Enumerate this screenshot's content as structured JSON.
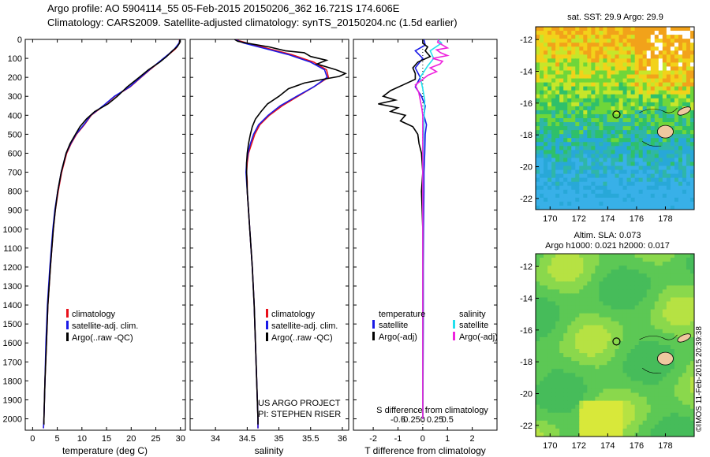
{
  "header": {
    "line1": "Argo profile: AO 5904114_55 05-Feb-2015 20150206_362 16.721S 174.606E",
    "line2": "Climatology: CARS2009. Satellite-adjusted climatology: synTS_20150204.nc (1.5d earlier)"
  },
  "timestamp": "©IMOS 11-Feb-2015 20:39:38",
  "depth_ticks": [
    0,
    100,
    200,
    300,
    400,
    500,
    600,
    700,
    800,
    900,
    1000,
    1100,
    1200,
    1300,
    1400,
    1500,
    1600,
    1700,
    1800,
    1900,
    2000
  ],
  "colors": {
    "climatology": "#e8101a",
    "satellite": "#1a1ae6",
    "argo": "#000000",
    "sat_salinity": "#22e0ee",
    "argo_salinity": "#ee22dd"
  },
  "legend1": {
    "clim": "climatology",
    "sat": "satellite-adj. clim.",
    "argo": "Argo(..raw -QC)"
  },
  "legend2": {
    "clim": "climatology",
    "sat": "satellite-adj. clim.",
    "argo": "Argo(..raw -QC)"
  },
  "legend3": {
    "temp_head": "temperature",
    "sal_head": "salinity",
    "temp_sat": "satellite",
    "temp_argo": "Argo(-adj)",
    "sal_sat": "satellite",
    "sal_argo": "Argo(-adj)"
  },
  "project": {
    "line1": "US ARGO PROJECT",
    "line2": "PI: STEPHEN RISER"
  },
  "sst_map": {
    "title": "sat. SST: 29.9 Argo: 29.9"
  },
  "sla_map": {
    "title1": "Altim. SLA: 0.073",
    "title2": "Argo h1000: 0.021 h2000: 0.017"
  },
  "chart_data": [
    {
      "type": "line",
      "id": "temperature",
      "xlabel": "temperature (deg C)",
      "ylabel": "depth",
      "xlim": [
        -1.5,
        31
      ],
      "ylim": [
        2060,
        0
      ],
      "xticks": [
        0,
        5,
        10,
        15,
        20,
        25,
        30
      ],
      "series": [
        {
          "name": "climatology",
          "depth": [
            0,
            20,
            50,
            80,
            120,
            160,
            200,
            250,
            300,
            350,
            400,
            450,
            500,
            550,
            600,
            700,
            800,
            900,
            1000,
            1200,
            1400,
            1600,
            1800,
            2000,
            2050
          ],
          "values": [
            29.8,
            29.8,
            29.0,
            27.6,
            25.7,
            23.8,
            22.0,
            19.8,
            16.7,
            14.4,
            11.9,
            10.5,
            8.9,
            7.8,
            6.9,
            5.9,
            5.2,
            4.6,
            4.2,
            3.6,
            3.1,
            2.8,
            2.5,
            2.3,
            2.2
          ]
        },
        {
          "name": "satellite-adj. clim.",
          "depth": [
            0,
            20,
            50,
            80,
            120,
            160,
            200,
            250,
            300,
            350,
            400,
            450,
            500,
            550,
            600,
            700,
            800,
            900,
            1000,
            1200,
            1400,
            1600,
            1800,
            2000,
            2050
          ],
          "values": [
            29.9,
            29.7,
            28.8,
            27.5,
            25.6,
            23.7,
            21.9,
            19.7,
            16.6,
            14.3,
            11.8,
            10.4,
            8.8,
            7.7,
            6.8,
            5.8,
            5.1,
            4.5,
            4.1,
            3.5,
            3.0,
            2.7,
            2.5,
            2.3,
            2.2
          ]
        },
        {
          "name": "Argo(..raw -QC)",
          "depth": [
            0,
            20,
            40,
            60,
            90,
            120,
            160,
            200,
            250,
            300,
            340,
            380,
            420,
            460,
            500,
            550,
            600,
            700,
            800,
            900,
            1000,
            1200,
            1400,
            1600,
            1800,
            2000,
            2030
          ],
          "values": [
            29.9,
            29.8,
            29.3,
            28.4,
            27.2,
            25.8,
            23.5,
            21.6,
            19.2,
            17.2,
            15.3,
            12.6,
            10.9,
            9.6,
            8.7,
            7.6,
            6.8,
            5.8,
            5.1,
            4.6,
            4.2,
            3.6,
            3.1,
            2.8,
            2.5,
            2.3,
            2.3
          ]
        }
      ]
    },
    {
      "type": "line",
      "id": "salinity",
      "xlabel": "salinity",
      "ylabel": "depth",
      "xlim": [
        33.6,
        36.1
      ],
      "ylim": [
        2060,
        0
      ],
      "xticks": [
        34,
        34.5,
        35,
        35.5,
        36
      ],
      "series": [
        {
          "name": "climatology",
          "depth": [
            0,
            20,
            50,
            80,
            120,
            160,
            200,
            250,
            300,
            350,
            400,
            450,
            500,
            550,
            600,
            650,
            700,
            750,
            800,
            900,
            1000,
            1200,
            1400,
            1600,
            1800,
            2000,
            2050
          ],
          "values": [
            34.3,
            34.5,
            34.85,
            35.2,
            35.55,
            35.75,
            35.78,
            35.55,
            35.3,
            35.05,
            34.85,
            34.7,
            34.62,
            34.57,
            34.52,
            34.5,
            34.49,
            34.5,
            34.5,
            34.52,
            34.54,
            34.58,
            34.61,
            34.63,
            34.65,
            34.67,
            34.67
          ]
        },
        {
          "name": "satellite-adj. clim.",
          "depth": [
            0,
            20,
            50,
            80,
            120,
            160,
            200,
            250,
            300,
            350,
            400,
            450,
            500,
            550,
            600,
            650,
            700,
            750,
            800,
            900,
            1000,
            1200,
            1400,
            1600,
            1800,
            2000,
            2050
          ],
          "values": [
            34.3,
            34.45,
            34.8,
            35.15,
            35.5,
            35.72,
            35.76,
            35.55,
            35.28,
            35.02,
            34.83,
            34.68,
            34.6,
            34.55,
            34.51,
            34.49,
            34.48,
            34.49,
            34.5,
            34.52,
            34.54,
            34.58,
            34.61,
            34.63,
            34.65,
            34.67,
            34.67
          ]
        },
        {
          "name": "Argo(..raw -QC)",
          "depth": [
            0,
            10,
            20,
            40,
            60,
            70,
            90,
            110,
            130,
            160,
            180,
            195,
            210,
            230,
            260,
            300,
            340,
            380,
            420,
            460,
            500,
            550,
            600,
            650,
            700,
            800,
            900,
            1000,
            1200,
            1400,
            1600,
            1800,
            2000,
            2030
          ],
          "values": [
            34.3,
            34.35,
            34.5,
            34.85,
            35.1,
            35.4,
            35.5,
            35.75,
            35.6,
            35.9,
            36.05,
            35.95,
            35.7,
            35.4,
            35.15,
            35.0,
            34.82,
            34.72,
            34.63,
            34.58,
            34.55,
            34.52,
            34.5,
            34.49,
            34.49,
            34.5,
            34.52,
            34.54,
            34.58,
            34.61,
            34.63,
            34.65,
            34.67,
            34.67
          ]
        }
      ]
    },
    {
      "type": "line",
      "id": "difference",
      "xlabel": "T difference from climatology",
      "xlabel_top": "S difference from climatology",
      "xlim": [
        -2.8,
        3.0
      ],
      "ylim": [
        2060,
        0
      ],
      "xticks": [
        -2,
        -1,
        0,
        1,
        2
      ],
      "xticks_top": [
        -0.5,
        -0.25,
        0,
        0.25,
        0.5
      ],
      "xticks_top_labels": [
        "-0.5",
        "-0.25",
        "0",
        "0.25",
        "0.5"
      ],
      "series": [
        {
          "name": "T satellite",
          "depth": [
            0,
            30,
            60,
            100,
            150,
            200,
            250,
            300,
            350,
            400,
            450,
            500,
            600,
            700,
            800,
            1000,
            1200,
            1500,
            1800,
            2000
          ],
          "values": [
            0.05,
            0.1,
            -0.3,
            0.0,
            -0.3,
            -0.1,
            -0.3,
            -0.05,
            0.1,
            0.05,
            0.15,
            0.1,
            0.08,
            0.05,
            0.05,
            0.03,
            0.02,
            0.02,
            0.01,
            0.0
          ]
        },
        {
          "name": "T Argo(-adj)",
          "depth": [
            0,
            20,
            40,
            60,
            90,
            120,
            150,
            180,
            210,
            240,
            270,
            300,
            320,
            340,
            360,
            380,
            400,
            430,
            460,
            500,
            550,
            600,
            700,
            800,
            1000,
            1200,
            1500,
            1800,
            2000
          ],
          "values": [
            0.0,
            0.0,
            0.2,
            0.1,
            0.3,
            -0.2,
            -0.4,
            -0.3,
            -0.3,
            -0.8,
            -1.3,
            -1.6,
            -1.1,
            -1.8,
            -1.0,
            -1.3,
            -0.7,
            -0.9,
            -0.4,
            -0.2,
            -0.15,
            -0.05,
            0.0,
            -0.05,
            0.0,
            0.0,
            0.0,
            0.0,
            0.0
          ]
        },
        {
          "name": "S satellite",
          "depth": [
            0,
            20,
            60,
            100,
            140,
            200,
            260,
            320,
            400,
            500,
            600,
            700,
            800,
            1000,
            1200,
            1500,
            1800,
            2000
          ],
          "values": [
            0.3,
            0.38,
            0.15,
            0.22,
            0.1,
            -0.05,
            0.0,
            0.04,
            0.03,
            0.02,
            0.01,
            0.0,
            0.0,
            0.0,
            0.0,
            0.0,
            0.0,
            0.0
          ]
        },
        {
          "name": "S Argo(-adj)",
          "depth": [
            0,
            15,
            30,
            45,
            55,
            70,
            85,
            100,
            115,
            130,
            150,
            170,
            190,
            210,
            240,
            280,
            320,
            360,
            400,
            460,
            520,
            600,
            700,
            1000,
            1400,
            2000
          ],
          "values": [
            0.32,
            0.3,
            0.4,
            0.5,
            0.28,
            0.36,
            0.5,
            0.2,
            0.4,
            0.35,
            0.15,
            0.28,
            0.1,
            0.0,
            -0.15,
            -0.08,
            -0.05,
            -0.02,
            0.0,
            0.0,
            0.0,
            0.0,
            0.0,
            0.0,
            0.0,
            0.0
          ]
        }
      ]
    },
    {
      "type": "heatmap",
      "id": "sst_map",
      "title": "sat. SST: 29.9 Argo: 29.9",
      "xticks": [
        170,
        172,
        174,
        176,
        178
      ],
      "yticks": [
        -12,
        -14,
        -16,
        -18,
        -20,
        -22
      ],
      "xlim": [
        169,
        180
      ],
      "ylim": [
        -22.7,
        -11.2
      ],
      "float_position": {
        "lon": 174.606,
        "lat": -16.721
      }
    },
    {
      "type": "heatmap",
      "id": "sla_map",
      "title": "Altim. SLA: 0.073",
      "xticks": [
        170,
        172,
        174,
        176,
        178
      ],
      "yticks": [
        -12,
        -14,
        -16,
        -18,
        -20,
        -22
      ],
      "xlim": [
        169,
        180
      ],
      "ylim": [
        -22.7,
        -11.2
      ],
      "float_position": {
        "lon": 174.606,
        "lat": -16.721
      }
    }
  ]
}
